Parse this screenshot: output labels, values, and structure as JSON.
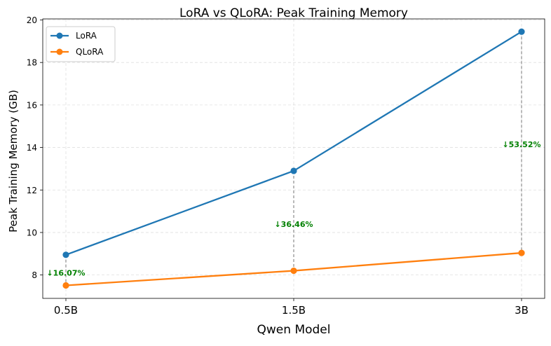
{
  "chart_data": {
    "type": "line",
    "title": "LoRA vs QLoRA: Peak Training Memory",
    "xlabel": "Qwen Model",
    "ylabel": "Peak Training Memory (GB)",
    "categories": [
      "0.5B",
      "1.5B",
      "3B"
    ],
    "yticks": [
      "8",
      "10",
      "12",
      "14",
      "16",
      "18",
      "20"
    ],
    "ylim": [
      6.9,
      20.05
    ],
    "grid": true,
    "legend_position": "top-left",
    "series": [
      {
        "name": "LoRA",
        "color": "#1f77b4",
        "values": [
          8.95,
          12.9,
          19.45
        ]
      },
      {
        "name": "QLoRA",
        "color": "#ff7f0e",
        "values": [
          7.51,
          8.2,
          9.04
        ]
      }
    ],
    "annotations": [
      {
        "text": "↓16.07%",
        "category": "0.5B",
        "y": 8.1,
        "color": "#008000"
      },
      {
        "text": "↓36.46%",
        "category": "1.5B",
        "y": 10.4,
        "color": "#008000"
      },
      {
        "text": "↓53.52%",
        "category": "3B",
        "y": 14.15,
        "color": "#008000"
      }
    ]
  }
}
